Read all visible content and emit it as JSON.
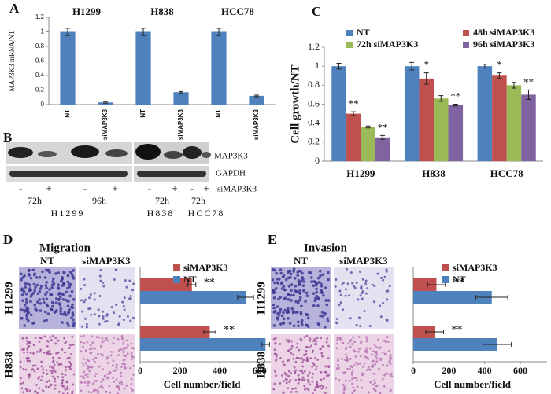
{
  "panel_labels": [
    "A",
    "B",
    "C",
    "D",
    "E"
  ],
  "chart_data": [
    {
      "type": "bar",
      "ylabel": "MAP3K3 mRNA/NT",
      "groups": [
        "H1299",
        "H838",
        "HCC78"
      ],
      "categories": [
        "NT",
        "siMAP3K3",
        "NT",
        "siMAP3K3",
        "NT",
        "siMAP3K3"
      ],
      "values": [
        1,
        0.03,
        1,
        0.17,
        1,
        0.12
      ],
      "errors": [
        0.05,
        0.01,
        0.05,
        0.01,
        0.05,
        0.01
      ],
      "color": "#4f81bd",
      "ylim": [
        0,
        1.2
      ],
      "yticks": [
        0,
        0.2,
        0.4,
        0.6,
        0.8,
        1,
        1.2
      ],
      "grid": false
    },
    {
      "type": "bar",
      "ylabel": "Cell growth/NT",
      "categories": [
        "H1299",
        "H838",
        "HCC78"
      ],
      "series": [
        {
          "name": "NT",
          "color": "#4f81bd",
          "values": [
            1,
            1,
            1
          ],
          "errors": [
            0.03,
            0.04,
            0.02
          ],
          "annotations": [
            null,
            null,
            null
          ]
        },
        {
          "name": "48h siMAP3K3",
          "color": "#c0504d",
          "values": [
            0.5,
            0.87,
            0.9
          ],
          "errors": [
            0.02,
            0.06,
            0.03
          ],
          "annotations": [
            "**",
            "*",
            "*"
          ]
        },
        {
          "name": "72h siMAP3K3",
          "color": "#9bbb59",
          "values": [
            0.36,
            0.66,
            0.8
          ],
          "errors": [
            0.01,
            0.03,
            0.03
          ],
          "annotations": [
            null,
            null,
            null
          ]
        },
        {
          "name": "96h siMAP3K3",
          "color": "#8064a2",
          "values": [
            0.25,
            0.59,
            0.7
          ],
          "errors": [
            0.02,
            0.01,
            0.05
          ],
          "annotations": [
            "**",
            "**",
            "**"
          ]
        }
      ],
      "ylim": [
        0,
        1.2
      ],
      "yticks": [
        0,
        0.2,
        0.4,
        0.6,
        0.8,
        1,
        1.2
      ],
      "grid": false
    },
    {
      "type": "barh",
      "title": "Migration",
      "xlabel": "Cell number/field",
      "categories": [
        "H1299",
        "H838"
      ],
      "series": [
        {
          "name": "siMAP3K3",
          "color": "#c0504d",
          "values": [
            260,
            350
          ],
          "errors": [
            20,
            30
          ],
          "annotations": [
            "**",
            "**"
          ]
        },
        {
          "name": "NT",
          "color": "#4f81bd",
          "values": [
            530,
            630
          ],
          "errors": [
            40,
            20
          ],
          "annotations": [
            null,
            null
          ]
        }
      ],
      "xlim": [
        0,
        700
      ],
      "xticks": [
        0,
        200,
        400,
        600
      ]
    },
    {
      "type": "barh",
      "title": "Invasion",
      "xlabel": "Cell number/field",
      "categories": [
        "H1299",
        "H838"
      ],
      "series": [
        {
          "name": "siMAP3K3",
          "color": "#c0504d",
          "values": [
            130,
            120
          ],
          "errors": [
            50,
            50
          ],
          "annotations": [
            "**",
            "**"
          ]
        },
        {
          "name": "NT",
          "color": "#4f81bd",
          "values": [
            440,
            470
          ],
          "errors": [
            90,
            80
          ],
          "annotations": [
            null,
            null
          ]
        }
      ],
      "xlim": [
        0,
        750
      ],
      "xticks": [
        0,
        200,
        400,
        600
      ]
    }
  ],
  "blot": {
    "bands": [
      "MAP3K3",
      "GAPDH"
    ],
    "signs": [
      "-",
      "+",
      "-",
      "+",
      "-",
      "+",
      "-",
      "+"
    ],
    "treatment": "siMAP3K3",
    "times": [
      "72h",
      "96h",
      "72h",
      "72h"
    ],
    "cell_lines": [
      "H1299",
      "H838",
      "HCC78"
    ]
  },
  "micrographs": [
    {
      "columns": [
        "NT",
        "siMAP3K3"
      ]
    },
    {
      "columns": [
        "NT",
        "siMAP3K3"
      ]
    }
  ]
}
